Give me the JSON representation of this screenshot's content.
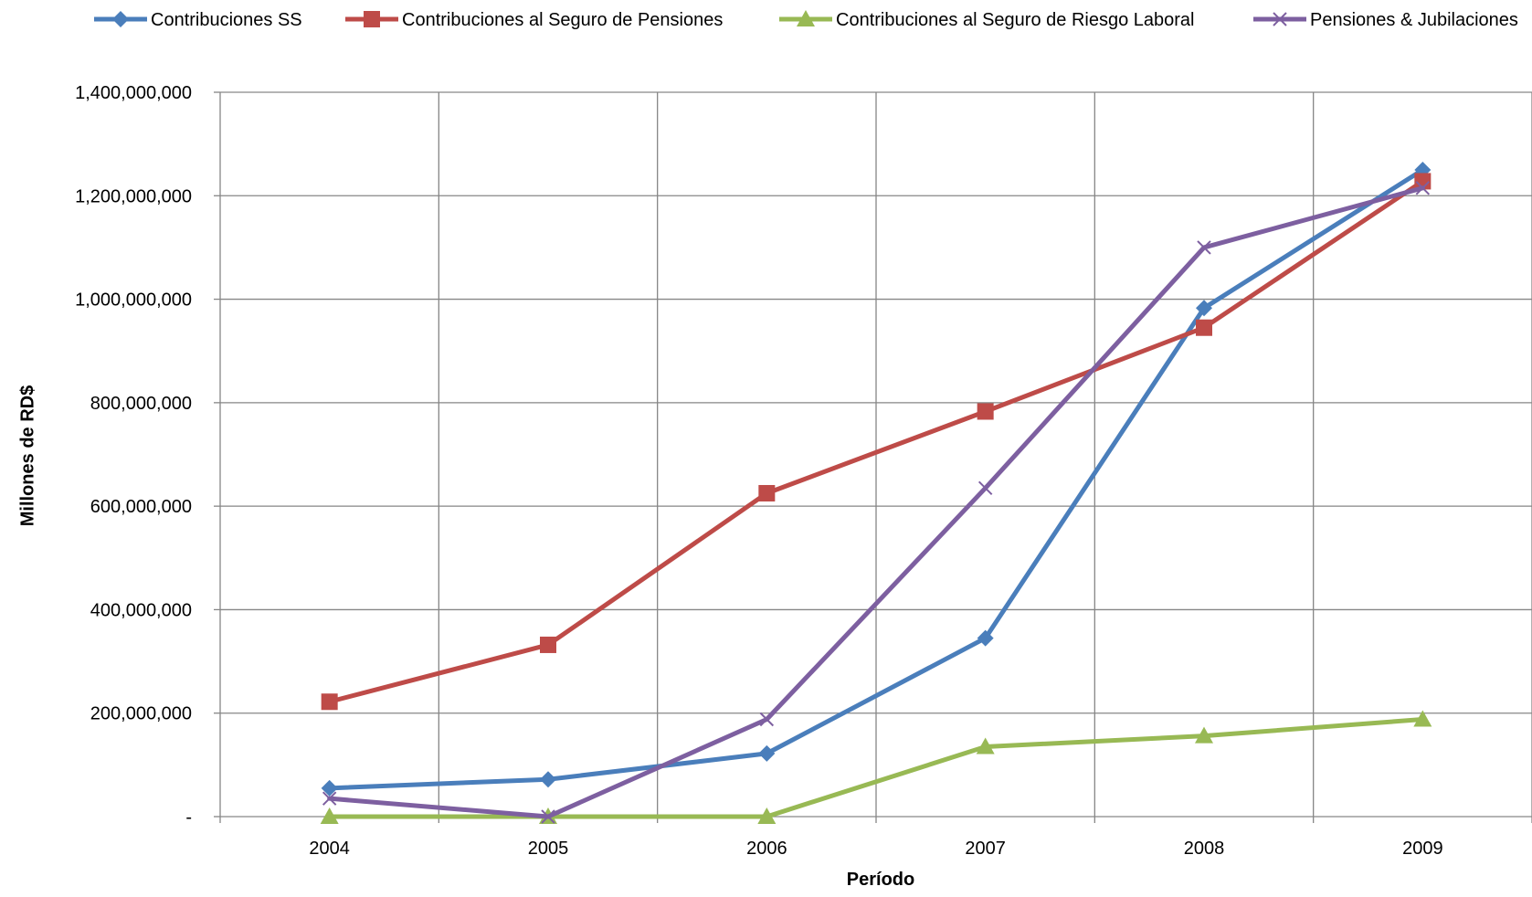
{
  "chart_data": {
    "type": "line",
    "title": "",
    "xlabel": "Período",
    "ylabel": "Millones de RD$",
    "categories": [
      "2004",
      "2005",
      "2006",
      "2007",
      "2008",
      "2009"
    ],
    "ylim": [
      0,
      1400000000
    ],
    "yticks": [
      0,
      200000000,
      400000000,
      600000000,
      800000000,
      1000000000,
      1200000000,
      1400000000
    ],
    "ytick_labels": [
      "-",
      "200,000,000",
      "400,000,000",
      "600,000,000",
      "800,000,000",
      "1,000,000,000",
      "1,200,000,000",
      "1,400,000,000"
    ],
    "grid": true,
    "legend_position": "top",
    "series": [
      {
        "name": "Contribuciones SS",
        "color": "#4a7ebb",
        "marker": "diamond",
        "values": [
          55000000,
          72000000,
          122000000,
          345000000,
          983000000,
          1250000000
        ]
      },
      {
        "name": "Contribuciones al Seguro de Pensiones",
        "color": "#be4b48",
        "marker": "square",
        "values": [
          222000000,
          332000000,
          625000000,
          783000000,
          945000000,
          1228000000
        ]
      },
      {
        "name": "Contribuciones al Seguro de Riesgo Laboral",
        "color": "#98b954",
        "marker": "triangle",
        "values": [
          0,
          0,
          0,
          135000000,
          156000000,
          188000000
        ]
      },
      {
        "name": "Pensiones & Jubilaciones",
        "color": "#7d5fa0",
        "marker": "x",
        "values": [
          35000000,
          0,
          188000000,
          635000000,
          1100000000,
          1215000000
        ]
      }
    ]
  }
}
